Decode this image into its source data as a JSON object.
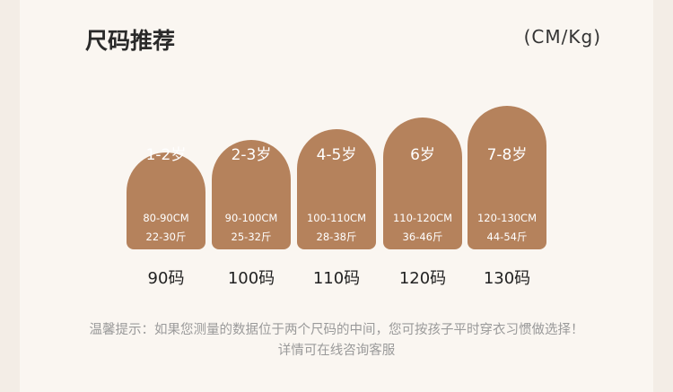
{
  "header": {
    "title": "尺码推荐",
    "unit": "(CM/Kg)"
  },
  "sizes": [
    {
      "age": "1-2岁",
      "height": "80-90CM",
      "weight": "22-30斤",
      "size": "90码"
    },
    {
      "age": "2-3岁",
      "height": "90-100CM",
      "weight": "25-32斤",
      "size": "100码"
    },
    {
      "age": "4-5岁",
      "height": "100-110CM",
      "weight": "28-38斤",
      "size": "110码"
    },
    {
      "age": "6岁",
      "height": "110-120CM",
      "weight": "36-46斤",
      "size": "120码"
    },
    {
      "age": "7-8岁",
      "height": "120-130CM",
      "weight": "44-54斤",
      "size": "130码"
    }
  ],
  "footer": {
    "tip": "温馨提示：如果您测量的数据位于两个尺码的中间，您可按孩子平时穿衣习惯做选择！",
    "contact": "详情可在线咨询客服"
  }
}
